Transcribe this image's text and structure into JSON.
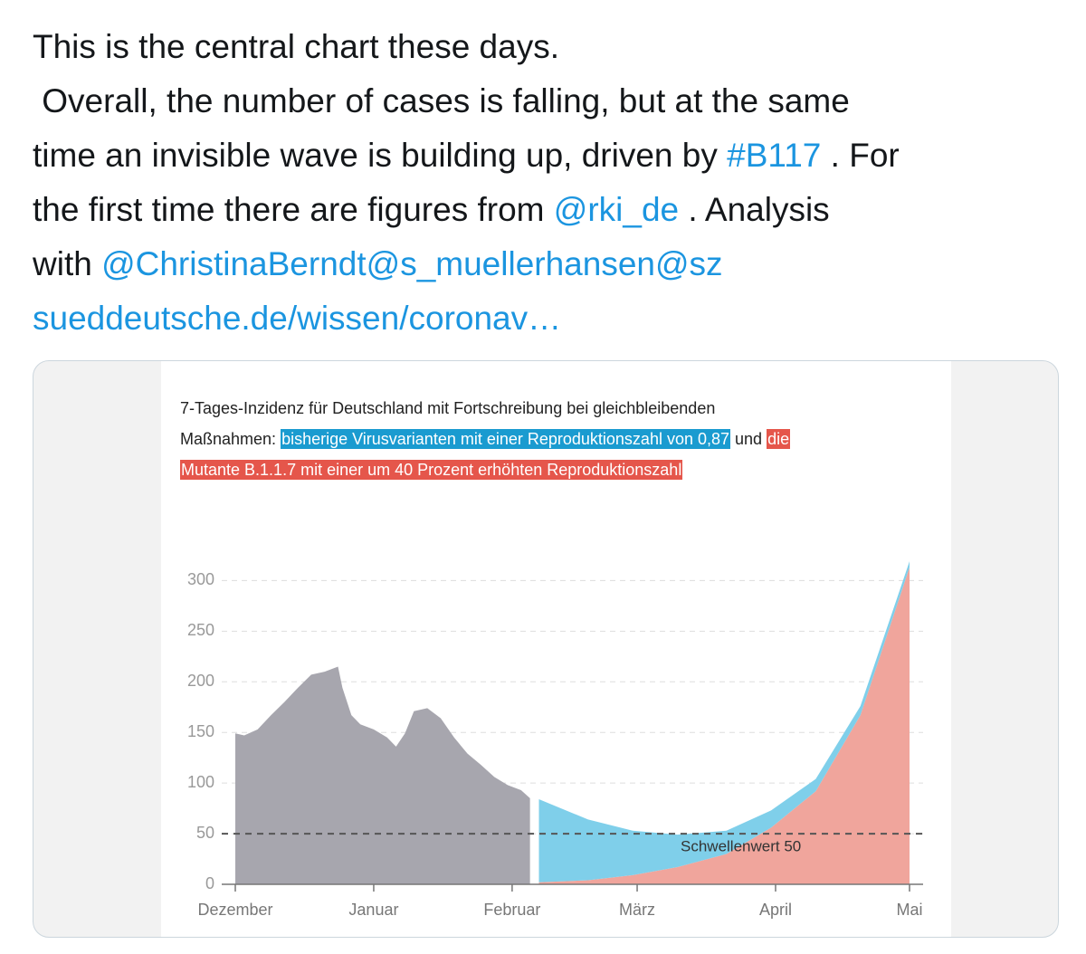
{
  "tweet": {
    "lines": [
      [
        {
          "text": "This is the central chart these days."
        }
      ],
      [
        {
          "text": " Overall, the number of cases is falling, but at the same"
        }
      ],
      [
        {
          "text": "time an invisible wave is building up, driven by "
        },
        {
          "text": "#B117",
          "link": true
        },
        {
          "text": " . For"
        }
      ],
      [
        {
          "text": "the first time there are figures from "
        },
        {
          "text": "@rki_de",
          "link": true
        },
        {
          "text": " . Analysis"
        }
      ],
      [
        {
          "text": "with "
        },
        {
          "text": "@ChristinaBerndt@s_muellerhansen@sz",
          "link": true
        }
      ],
      [
        {
          "text": "sueddeutsche.de/wissen/coronav…",
          "link": true
        }
      ]
    ]
  },
  "chart_data": {
    "type": "area",
    "title": [
      [
        {
          "text": "7-Tages-Inzidenz für Deutschland mit Fortschreibung bei gleichbleibenden"
        }
      ],
      [
        {
          "text": "Maßnahmen: "
        },
        {
          "text": "bisherige Virusvarianten mit einer Reproduktionszahl von 0,87",
          "highlight": "#1a9bd0"
        },
        {
          "text": " und "
        },
        {
          "text": "die",
          "highlight": "#e5564b"
        }
      ],
      [
        {
          "text": "Mutante B.1.1.7 mit einer um 40 Prozent erhöhten Reproduktionszahl",
          "highlight": "#e5564b"
        }
      ]
    ],
    "xlim": [
      0,
      151
    ],
    "xticks": [
      {
        "value": 0,
        "label": "Dezember"
      },
      {
        "value": 31,
        "label": "Januar"
      },
      {
        "value": 62,
        "label": "Februar"
      },
      {
        "value": 90,
        "label": "März"
      },
      {
        "value": 121,
        "label": "April"
      },
      {
        "value": 151,
        "label": "Mai"
      }
    ],
    "ylim": [
      0,
      320
    ],
    "yticks": [
      0,
      50,
      100,
      150,
      200,
      250,
      300
    ],
    "grid": true,
    "series": [
      {
        "color": "#a7a6ae",
        "x": [
          0,
          2,
          5,
          8,
          11,
          14,
          17,
          20,
          23,
          24,
          26,
          28,
          31,
          34,
          36,
          38,
          40,
          43,
          46,
          49,
          52,
          55,
          58,
          61,
          64,
          66
        ],
        "values": [
          149,
          147,
          153,
          167,
          180,
          194,
          207,
          210,
          215,
          194,
          167,
          158,
          153,
          145,
          136,
          149,
          171,
          174,
          164,
          145,
          129,
          118,
          106,
          98,
          93,
          85
        ]
      },
      {
        "color": "#f0a59c",
        "stack": "projection",
        "x": [
          68,
          79,
          89,
          99,
          110,
          120,
          130,
          140,
          151
        ],
        "values": [
          2,
          4,
          9,
          17,
          30,
          56,
          92,
          167,
          313
        ]
      },
      {
        "color": "#7fcfea",
        "stack": "projection",
        "x": [
          68,
          79,
          89,
          99,
          110,
          120,
          130,
          140,
          151
        ],
        "values": [
          82,
          60,
          44,
          32,
          23,
          17,
          12,
          9,
          6
        ]
      }
    ],
    "threshold": {
      "value": 50,
      "label": "Schwellenwert 50"
    }
  }
}
